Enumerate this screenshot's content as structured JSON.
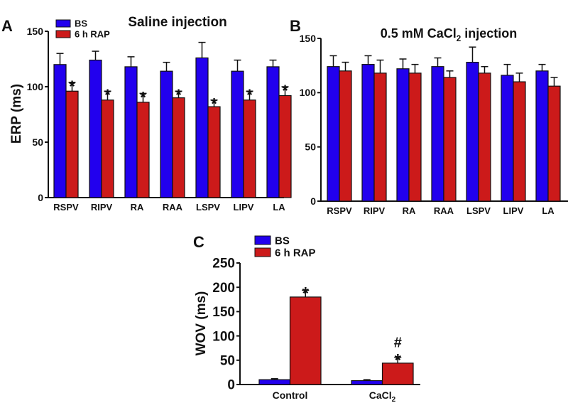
{
  "colors": {
    "bs": "#2200ee",
    "rap": "#cc1a1a",
    "axis": "#111111"
  },
  "legend": {
    "bs": "BS",
    "rap": "6 h RAP"
  },
  "chart_data": [
    {
      "panel": "A",
      "type": "bar",
      "title": "Saline injection",
      "ylabel": "ERP (ms)",
      "xlabel": "",
      "ylim": [
        0,
        150
      ],
      "yticks": [
        0,
        50,
        100,
        150
      ],
      "categories": [
        "RSPV",
        "RIPV",
        "RA",
        "RAA",
        "LSPV",
        "LIPV",
        "LA"
      ],
      "legend_position": "top-left",
      "series": [
        {
          "name": "BS",
          "values": [
            120,
            124,
            118,
            114,
            126,
            114,
            118
          ],
          "errors": [
            10,
            8,
            9,
            8,
            14,
            10,
            6
          ]
        },
        {
          "name": "6 h RAP",
          "values": [
            96,
            88,
            86,
            90,
            82,
            88,
            92
          ],
          "errors": [
            8,
            8,
            8,
            6,
            6,
            8,
            8
          ],
          "annotations": [
            "*",
            "*",
            "*",
            "*",
            "*",
            "*",
            "*"
          ]
        }
      ]
    },
    {
      "panel": "B",
      "type": "bar",
      "title": "0.5 mM CaCl",
      "title_sub": "2",
      "title_suffix": " injection",
      "ylabel": "",
      "ylim": [
        0,
        150
      ],
      "yticks": [
        0,
        50,
        100,
        150
      ],
      "categories": [
        "RSPV",
        "RIPV",
        "RA",
        "RAA",
        "LSPV",
        "LIPV",
        "LA"
      ],
      "series": [
        {
          "name": "BS",
          "values": [
            124,
            126,
            122,
            124,
            128,
            116,
            120
          ],
          "errors": [
            10,
            8,
            9,
            8,
            14,
            10,
            6
          ]
        },
        {
          "name": "6 h RAP",
          "values": [
            120,
            118,
            118,
            114,
            118,
            110,
            106
          ],
          "errors": [
            8,
            12,
            8,
            6,
            6,
            8,
            8
          ]
        }
      ]
    },
    {
      "panel": "C",
      "type": "bar",
      "title": "",
      "ylabel": "WOV (ms)",
      "ylim": [
        0,
        250
      ],
      "yticks": [
        0,
        50,
        100,
        150,
        200,
        250
      ],
      "categories": [
        "Control",
        "CaCl"
      ],
      "category_subs": [
        "",
        "2"
      ],
      "legend_position": "top-left",
      "series": [
        {
          "name": "BS",
          "values": [
            10,
            8
          ],
          "errors": [
            2,
            2
          ]
        },
        {
          "name": "6 h RAP",
          "values": [
            180,
            44
          ],
          "errors": [
            14,
            12
          ],
          "annotations": [
            "*",
            "*"
          ],
          "annotations2": [
            "",
            "#"
          ]
        }
      ]
    }
  ]
}
